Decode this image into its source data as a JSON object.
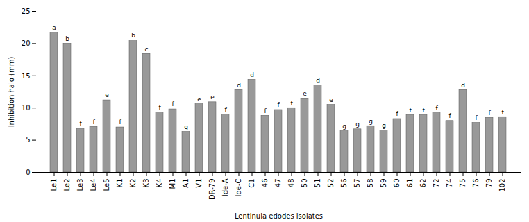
{
  "chart_data": {
    "type": "bar",
    "categories": [
      "Le1",
      "Le2",
      "Le3",
      "Le4",
      "Le5",
      "K1",
      "K2",
      "K3",
      "K4",
      "M1",
      "A1",
      "V1",
      "DR-79",
      "Ide-A",
      "Ide-C",
      "C1",
      "46",
      "47",
      "48",
      "50",
      "51",
      "52",
      "56",
      "57",
      "58",
      "59",
      "60",
      "61",
      "62",
      "72",
      "74",
      "75",
      "76",
      "79",
      "102"
    ],
    "values": [
      21.7,
      20.0,
      6.8,
      7.1,
      11.2,
      7.0,
      20.5,
      18.4,
      9.3,
      9.8,
      6.3,
      10.6,
      10.9,
      9.0,
      12.8,
      14.4,
      8.8,
      9.7,
      10.0,
      11.5,
      13.5,
      10.5,
      6.4,
      6.7,
      7.2,
      6.5,
      8.3,
      8.9,
      8.9,
      9.2,
      8.0,
      12.8,
      7.7,
      8.5,
      8.6
    ],
    "annotations": [
      "a",
      "b",
      "f",
      "f",
      "e",
      "f",
      "b",
      "c",
      "f",
      "f",
      "g",
      "e",
      "e",
      "f",
      "d",
      "d",
      "f",
      "f",
      "f",
      "e",
      "d",
      "e",
      "g",
      "g",
      "g",
      "g",
      "f",
      "f",
      "f",
      "f",
      "f",
      "d",
      "f",
      "f",
      "f"
    ],
    "color": "#999999",
    "xlabel": "Lentinula edodes isolates",
    "ylabel": "Inhibition halo (mm)",
    "ylim": [
      0,
      25
    ],
    "yticks": [
      0,
      5,
      10,
      15,
      20,
      25
    ],
    "grid": false
  }
}
